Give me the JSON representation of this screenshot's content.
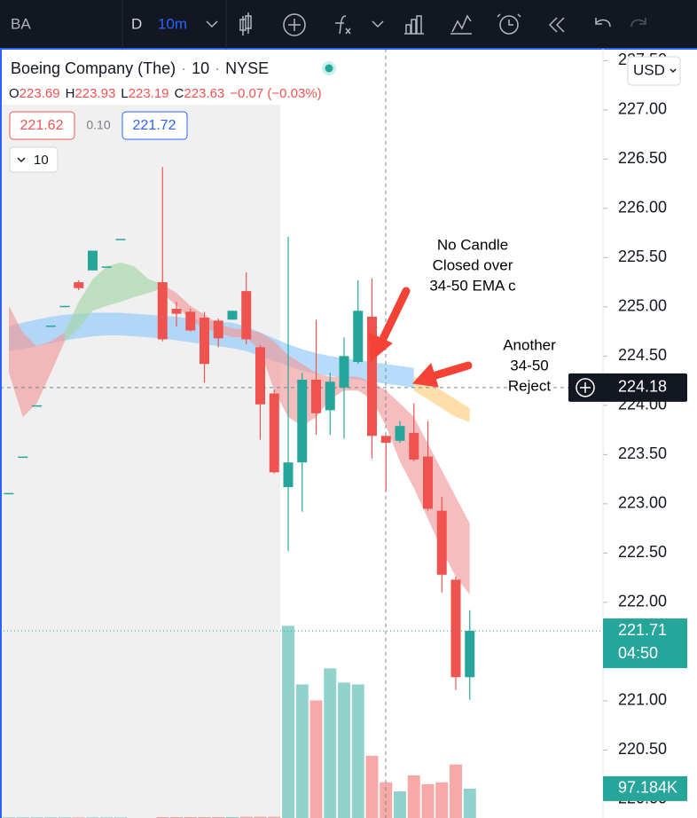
{
  "toolbar": {
    "symbol": "BA",
    "period": "D",
    "interval": "10m"
  },
  "header": {
    "title": "Boeing Company (The)",
    "interval": "10",
    "exchange": "NYSE",
    "ohlc": [
      {
        "key": "O",
        "value": "223.69"
      },
      {
        "key": "H",
        "value": "223.93"
      },
      {
        "key": "L",
        "value": "223.19"
      },
      {
        "key": "C",
        "value": "223.63"
      }
    ],
    "change": "−0.07 (−0.03%)",
    "bid": "221.62",
    "spread": "0.10",
    "ask": "221.72",
    "indicators": "10",
    "currency": "USD"
  },
  "annotations": [
    {
      "lines": [
        "No Candle",
        "Closed over",
        "34-50 EMA c"
      ]
    },
    {
      "lines": [
        "Another",
        "34-50",
        "Reject"
      ]
    }
  ],
  "chart_data": {
    "type": "candlestick",
    "ylim": [
      219.81,
      227.62
    ],
    "yticks": [
      {
        "value": 220,
        "label": "220.00"
      },
      {
        "value": 220.5,
        "label": "220.50"
      },
      {
        "value": 221,
        "label": "221.00"
      },
      {
        "value": 221.5,
        "label": "221.50"
      },
      {
        "value": 222,
        "label": "222.00"
      },
      {
        "value": 222.5,
        "label": "222.50"
      },
      {
        "value": 223,
        "label": "223.00"
      },
      {
        "value": 223.5,
        "label": "223.50"
      },
      {
        "value": 224,
        "label": "224.00"
      },
      {
        "value": 224.5,
        "label": "224.50"
      },
      {
        "value": 225,
        "label": "225.00"
      },
      {
        "value": 225.5,
        "label": "225.50"
      },
      {
        "value": 226,
        "label": "226.00"
      },
      {
        "value": 226.5,
        "label": "226.50"
      },
      {
        "value": 227,
        "label": "227.00"
      },
      {
        "value": 227.5,
        "label": "227.50"
      }
    ],
    "up_color": "#26a69a",
    "down_color": "#ef5350",
    "open": [
      223.11,
      223.48,
      224.0,
      224.81,
      225.01,
      225.25,
      225.37,
      225.41,
      225.69,
      null,
      null,
      225.25,
      224.98,
      224.95,
      224.89,
      224.86,
      224.87,
      225.16,
      224.59,
      224.12,
      223.17,
      223.42,
      224.26,
      223.95,
      224.18,
      224.44,
      224.9,
      223.69,
      223.64,
      223.72,
      223.48,
      222.93,
      222.23,
      221.24
    ],
    "high": [
      223.11,
      223.48,
      224.0,
      224.81,
      225.01,
      225.27,
      225.57,
      225.41,
      225.69,
      null,
      null,
      226.42,
      225.05,
      224.98,
      224.95,
      224.88,
      224.96,
      225.35,
      224.61,
      224.16,
      225.71,
      224.33,
      224.87,
      224.33,
      224.69,
      225.27,
      225.29,
      223.69,
      223.84,
      224.02,
      223.84,
      223.07,
      222.26,
      221.92
    ],
    "low": [
      223.11,
      223.48,
      224.0,
      224.81,
      225.01,
      225.17,
      225.37,
      225.41,
      225.69,
      null,
      null,
      224.65,
      224.8,
      224.75,
      224.23,
      224.59,
      224.87,
      224.62,
      223.65,
      223.31,
      222.52,
      222.92,
      223.7,
      223.7,
      223.66,
      224.42,
      223.46,
      223.13,
      223.62,
      223.43,
      222.93,
      222.1,
      221.11,
      221.01
    ],
    "close": [
      223.11,
      223.48,
      224.0,
      224.81,
      225.01,
      225.19,
      225.57,
      225.41,
      225.69,
      null,
      null,
      224.67,
      224.93,
      224.76,
      224.42,
      224.68,
      224.96,
      224.67,
      224.01,
      223.32,
      223.42,
      224.26,
      223.92,
      224.24,
      224.5,
      224.96,
      223.69,
      223.62,
      223.79,
      223.45,
      222.95,
      222.28,
      221.24,
      221.71
    ],
    "volume": [
      2,
      2,
      2,
      2,
      2,
      2,
      2,
      2,
      2,
      null,
      null,
      3,
      3,
      3,
      3,
      3,
      3,
      4,
      4,
      4,
      636,
      442,
      389,
      495,
      448,
      442,
      206,
      118,
      88,
      141,
      112,
      118,
      177,
      97.184
    ],
    "volume_lim": [
      0,
      640
    ],
    "volume_label": {
      "value": 97.184,
      "label": "97.184K"
    },
    "ribbons": [
      {
        "color": "#90caf9",
        "upper": [
          224.8,
          224.84,
          224.87,
          224.9,
          224.92,
          224.93,
          224.94,
          224.94,
          224.94,
          224.93,
          224.92,
          224.91,
          224.9,
          224.88,
          224.86,
          224.85,
          224.84,
          224.8,
          224.74,
          224.68,
          224.62,
          224.57,
          224.53,
          224.5,
          224.48,
          224.46,
          224.44,
          224.42,
          224.4,
          224.38,
          null,
          null,
          null,
          null
        ],
        "lower": [
          224.55,
          224.57,
          224.6,
          224.63,
          224.66,
          224.68,
          224.7,
          224.71,
          224.71,
          224.7,
          224.69,
          224.68,
          224.66,
          224.64,
          224.62,
          224.6,
          224.58,
          224.55,
          224.5,
          224.45,
          224.4,
          224.35,
          224.32,
          224.3,
          224.28,
          224.26,
          224.24,
          224.22,
          224.2,
          224.18,
          null,
          null,
          null,
          null
        ]
      },
      {
        "color": "#ffcc80",
        "upper": [
          null,
          null,
          null,
          null,
          null,
          null,
          null,
          null,
          null,
          null,
          null,
          null,
          null,
          null,
          null,
          null,
          null,
          null,
          null,
          null,
          null,
          null,
          null,
          null,
          null,
          null,
          null,
          null,
          null,
          224.29,
          224.24,
          224.15,
          224.06,
          223.97
        ],
        "lower": [
          null,
          null,
          null,
          null,
          null,
          null,
          null,
          null,
          null,
          null,
          null,
          null,
          null,
          null,
          null,
          null,
          null,
          null,
          null,
          null,
          null,
          null,
          null,
          null,
          null,
          null,
          null,
          null,
          null,
          224.15,
          224.06,
          223.97,
          223.88,
          223.83
        ]
      },
      {
        "color": "#ef9a9a",
        "upper": [
          225.01,
          224.74,
          224.6,
          224.65,
          224.74,
          null,
          null,
          null,
          null,
          null,
          null,
          null,
          null,
          null,
          null,
          null,
          null,
          null,
          null,
          null,
          null,
          null,
          null,
          null,
          null,
          null,
          null,
          null,
          null,
          null,
          null,
          null,
          null,
          null
        ],
        "lower": [
          224.33,
          223.88,
          224.02,
          224.33,
          224.65,
          null,
          null,
          null,
          null,
          null,
          null,
          null,
          null,
          null,
          null,
          null,
          null,
          null,
          null,
          null,
          null,
          null,
          null,
          null,
          null,
          null,
          null,
          null,
          null,
          null,
          null,
          null,
          null,
          null
        ]
      },
      {
        "color": "#a5d6a7",
        "upper": [
          null,
          null,
          null,
          null,
          224.74,
          225.05,
          225.28,
          225.41,
          225.45,
          225.41,
          225.28,
          225.23,
          null,
          null,
          null,
          null,
          null,
          null,
          null,
          null,
          null,
          null,
          null,
          null,
          null,
          null,
          null,
          null,
          null,
          null,
          null,
          null,
          null,
          null
        ],
        "lower": [
          null,
          null,
          null,
          null,
          224.65,
          224.78,
          224.96,
          225.01,
          225.05,
          225.1,
          225.14,
          225.19,
          null,
          null,
          null,
          null,
          null,
          null,
          null,
          null,
          null,
          null,
          null,
          null,
          null,
          null,
          null,
          null,
          null,
          null,
          null,
          null,
          null,
          null
        ]
      },
      {
        "color": "#ef9a9a",
        "upper": [
          null,
          null,
          null,
          null,
          null,
          null,
          null,
          null,
          null,
          null,
          null,
          225.23,
          225.14,
          225.01,
          224.92,
          224.83,
          224.78,
          224.77,
          224.74,
          224.65,
          224.51,
          224.42,
          224.33,
          224.29,
          224.29,
          224.29,
          224.24,
          224.15,
          224.02,
          223.88,
          223.61,
          223.34,
          223.07,
          222.8
        ],
        "lower": [
          null,
          null,
          null,
          null,
          null,
          null,
          null,
          null,
          null,
          null,
          null,
          225.14,
          225.01,
          224.87,
          224.78,
          224.74,
          224.69,
          224.69,
          224.56,
          224.15,
          223.88,
          223.79,
          223.88,
          224.06,
          224.15,
          224.15,
          224.06,
          223.79,
          223.43,
          223.16,
          222.85,
          222.53,
          222.26,
          222.08
        ]
      }
    ],
    "crosshair": {
      "price": 224.18
    },
    "last_price": {
      "price": 221.71,
      "countdown": "04:50"
    }
  }
}
